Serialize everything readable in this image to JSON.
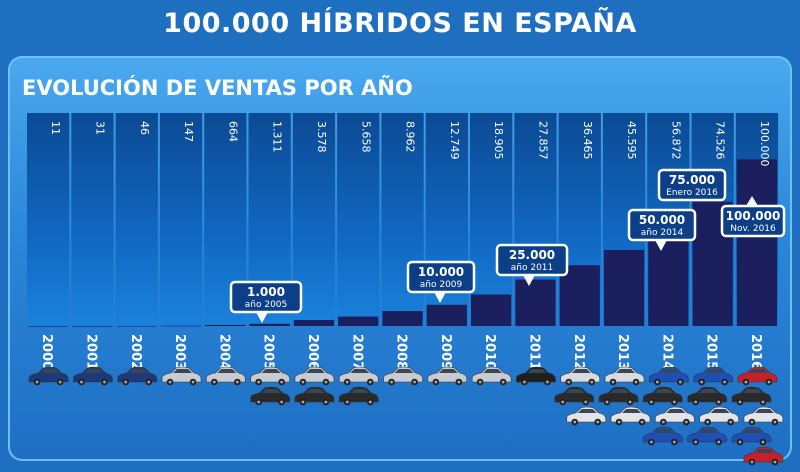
{
  "title": "100.000 HÍBRIDOS EN ESPAÑA",
  "subtitle": "EVOLUCIÓN DE VENTAS POR AÑO",
  "chart_data": {
    "type": "bar",
    "title": "EVOLUCIÓN DE VENTAS POR AÑO",
    "categories": [
      "2000",
      "2001",
      "2002",
      "2003",
      "2004",
      "2005",
      "2006",
      "2007",
      "2008",
      "2009",
      "2010",
      "2011",
      "2012",
      "2013",
      "2014",
      "2015",
      "2016"
    ],
    "values": [
      11,
      31,
      46,
      147,
      664,
      1311,
      3578,
      5658,
      8962,
      12749,
      18905,
      27857,
      36465,
      45595,
      56872,
      74526,
      100000
    ],
    "value_labels": [
      "11",
      "31",
      "46",
      "147",
      "664",
      "1.311",
      "3.578",
      "5.658",
      "8.962",
      "12.749",
      "18.905",
      "27.857",
      "36.465",
      "45.595",
      "56.872",
      "74.526",
      "100.000"
    ],
    "ylim": [
      0,
      120000
    ],
    "grid": false,
    "bar_color": "#1b1f5e",
    "column_color": "#0e4f99",
    "milestones": [
      {
        "value": "1.000",
        "label": "año 2005",
        "category": "2005"
      },
      {
        "value": "10.000",
        "label": "año 2009",
        "category": "2009"
      },
      {
        "value": "25.000",
        "label": "año 2011",
        "category": "2011"
      },
      {
        "value": "50.000",
        "label": "año 2014",
        "category": "2014"
      },
      {
        "value": "75.000",
        "label": "Enero 2016",
        "category": "2016"
      },
      {
        "value": "100.000",
        "label": "Nov. 2016",
        "category": "2016"
      }
    ]
  },
  "cars_icon": "car-icon",
  "car_colors": [
    "#1c3a7a",
    "#1c3a7a",
    "#1c3a7a",
    "#c8ccd2",
    "#c8ccd2",
    "#c8ccd2",
    "#c8ccd2",
    "#c8ccd2",
    "#c8ccd2",
    "#c8ccd2",
    "#c8ccd2",
    "#202020",
    "#d8dce0",
    "#d8dce0",
    "#1d4fb5",
    "#1d4fb5",
    "#c8202a"
  ]
}
